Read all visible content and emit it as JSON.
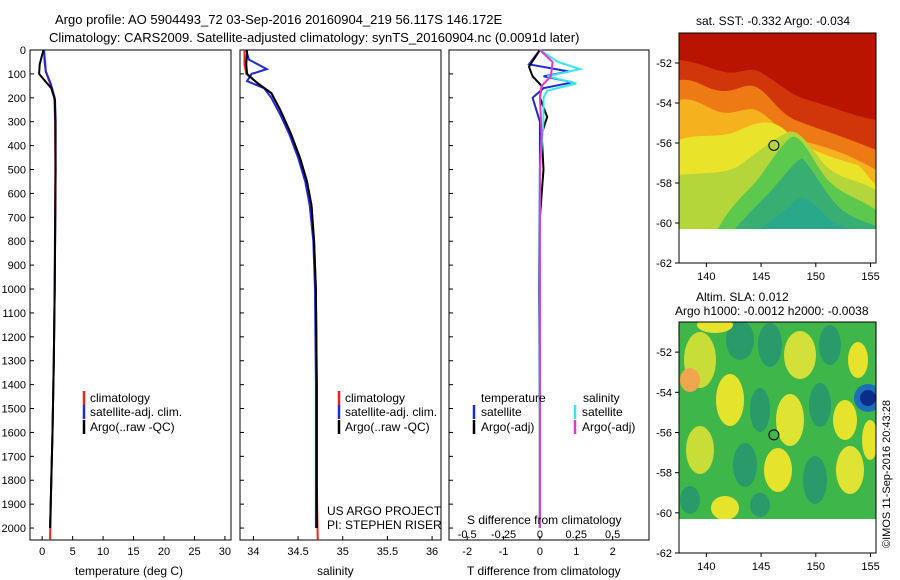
{
  "header": {
    "line1": "Argo profile: AO 5904493_72 03-Sep-2016 20160904_219 56.117S 146.172E",
    "line2": "Climatology: CARS2009. Satellite-adjusted climatology: synTS_20160904.nc (0.0091d later)"
  },
  "credits": {
    "project_line1": "US ARGO PROJECT",
    "project_line2": "PI: STEPHEN RISER",
    "stamp": "©IMOS 11-Sep-2016 20:43:28"
  },
  "colors": {
    "climatology": "#e8231e",
    "satellite": "#1f2ad4",
    "argo": "#000000",
    "salinity_satellite": "#35e6ee",
    "salinity_argo": "#e23ad0"
  },
  "chart_data": [
    {
      "type": "line",
      "id": "temperature",
      "xlabel": "temperature (deg C)",
      "ylabel": "",
      "xlim": [
        -2,
        31
      ],
      "ylim": [
        2050,
        0
      ],
      "xticks": [
        0,
        5,
        10,
        15,
        20,
        25,
        30
      ],
      "yticks": [
        0,
        100,
        200,
        300,
        400,
        500,
        600,
        700,
        800,
        900,
        1000,
        1100,
        1200,
        1300,
        1400,
        1500,
        1600,
        1700,
        1800,
        1900,
        2000
      ],
      "legend": [
        "climatology",
        "satellite-adj. clim.",
        "Argo(..raw -QC)"
      ],
      "series": [
        {
          "name": "climatology",
          "color": "#e8231e",
          "points": [
            [
              0.3,
              0
            ],
            [
              0.5,
              50
            ],
            [
              0.6,
              90
            ],
            [
              1.3,
              140
            ],
            [
              2.0,
              200
            ],
            [
              2.1,
              300
            ],
            [
              2.15,
              500
            ],
            [
              2.1,
              700
            ],
            [
              2.05,
              1000
            ],
            [
              1.9,
              1300
            ],
            [
              1.7,
              1600
            ],
            [
              1.5,
              1800
            ],
            [
              1.3,
              2050
            ]
          ]
        },
        {
          "name": "satellite-adj. clim.",
          "color": "#1f2ad4",
          "points": [
            [
              0.3,
              0
            ],
            [
              0.4,
              50
            ],
            [
              0.6,
              90
            ],
            [
              1.4,
              140
            ],
            [
              2.05,
              200
            ],
            [
              2.15,
              300
            ],
            [
              2.2,
              500
            ],
            [
              2.15,
              700
            ],
            [
              2.05,
              1000
            ],
            [
              1.9,
              1300
            ],
            [
              1.7,
              1600
            ],
            [
              1.5,
              1800
            ],
            [
              1.3,
              2000
            ]
          ]
        },
        {
          "name": "Argo(..raw -QC)",
          "color": "#000000",
          "points": [
            [
              0.2,
              0
            ],
            [
              -0.4,
              60
            ],
            [
              -0.5,
              100
            ],
            [
              0.5,
              130
            ],
            [
              1.5,
              160
            ],
            [
              2.1,
              210
            ],
            [
              2.2,
              300
            ],
            [
              2.2,
              500
            ],
            [
              2.15,
              700
            ],
            [
              2.05,
              1000
            ],
            [
              1.9,
              1300
            ],
            [
              1.7,
              1600
            ],
            [
              1.5,
              1800
            ],
            [
              1.3,
              2000
            ]
          ]
        }
      ]
    },
    {
      "type": "line",
      "id": "salinity",
      "xlabel": "salinity",
      "ylabel": "",
      "xlim": [
        33.85,
        36.1
      ],
      "ylim": [
        2050,
        0
      ],
      "xticks": [
        34,
        34.5,
        35,
        35.5,
        36
      ],
      "xticklabels": [
        "34",
        "34.5",
        "35",
        "35.5",
        "36"
      ],
      "legend": [
        "climatology",
        "satellite-adj. clim.",
        "Argo(..raw -QC)"
      ],
      "series": [
        {
          "name": "climatology",
          "color": "#e8231e",
          "points": [
            [
              33.9,
              0
            ],
            [
              33.9,
              60
            ],
            [
              33.92,
              100
            ],
            [
              34.05,
              140
            ],
            [
              34.2,
              180
            ],
            [
              34.3,
              250
            ],
            [
              34.42,
              350
            ],
            [
              34.52,
              450
            ],
            [
              34.6,
              550
            ],
            [
              34.65,
              650
            ],
            [
              34.68,
              800
            ],
            [
              34.7,
              1000
            ],
            [
              34.71,
              1400
            ],
            [
              34.71,
              1800
            ],
            [
              34.72,
              2050
            ]
          ]
        },
        {
          "name": "satellite-adj. clim.",
          "color": "#1f2ad4",
          "points": [
            [
              33.92,
              0
            ],
            [
              33.95,
              40
            ],
            [
              34.15,
              80
            ],
            [
              33.98,
              100
            ],
            [
              33.93,
              130
            ],
            [
              34.12,
              160
            ],
            [
              34.2,
              200
            ],
            [
              34.3,
              270
            ],
            [
              34.4,
              350
            ],
            [
              34.5,
              450
            ],
            [
              34.58,
              550
            ],
            [
              34.63,
              650
            ],
            [
              34.67,
              800
            ],
            [
              34.69,
              1000
            ],
            [
              34.7,
              1400
            ],
            [
              34.7,
              1800
            ],
            [
              34.7,
              2000
            ]
          ]
        },
        {
          "name": "Argo(..raw -QC)",
          "color": "#000000",
          "points": [
            [
              33.93,
              0
            ],
            [
              33.92,
              60
            ],
            [
              33.93,
              100
            ],
            [
              34.05,
              140
            ],
            [
              34.2,
              180
            ],
            [
              34.3,
              250
            ],
            [
              34.42,
              350
            ],
            [
              34.52,
              450
            ],
            [
              34.6,
              550
            ],
            [
              34.65,
              650
            ],
            [
              34.68,
              800
            ],
            [
              34.7,
              1000
            ],
            [
              34.71,
              1400
            ],
            [
              34.71,
              1800
            ],
            [
              34.71,
              2000
            ]
          ]
        }
      ]
    },
    {
      "type": "line",
      "id": "difference",
      "xlabel": "T difference from climatology",
      "xlabel2": "S difference from climatology",
      "xlim": [
        -2.5,
        3
      ],
      "ylim": [
        2050,
        0
      ],
      "xticks": [
        -2,
        -1,
        0,
        1,
        2
      ],
      "xticks_top": [
        -0.5,
        -0.25,
        0,
        0.25,
        0.5
      ],
      "xticklabels_top": [
        "-0.5",
        "-0.25",
        "0",
        "0.25",
        "0.5"
      ],
      "legend_title_t": "temperature",
      "legend_title_s": "salinity",
      "legend_t": [
        "satellite",
        "Argo(-adj)"
      ],
      "legend_s": [
        "satellite",
        "Argo(-adj)"
      ],
      "series": [
        {
          "name": "satellite",
          "group": "temperature",
          "color": "#1f2ad4",
          "points": [
            [
              0,
              0
            ],
            [
              -0.3,
              60
            ],
            [
              0.8,
              90
            ],
            [
              0.1,
              110
            ],
            [
              0.9,
              135
            ],
            [
              0.1,
              160
            ],
            [
              -0.2,
              200
            ],
            [
              0,
              300
            ],
            [
              0,
              500
            ],
            [
              -0.02,
              1000
            ],
            [
              0,
              1500
            ],
            [
              0,
              2000
            ]
          ]
        },
        {
          "name": "Argo(-adj)",
          "group": "temperature",
          "color": "#000000",
          "points": [
            [
              0,
              0
            ],
            [
              -0.3,
              70
            ],
            [
              -0.2,
              110
            ],
            [
              0.05,
              150
            ],
            [
              0,
              200
            ],
            [
              0.2,
              280
            ],
            [
              0.05,
              350
            ],
            [
              0.1,
              500
            ],
            [
              0,
              700
            ],
            [
              0,
              1000
            ],
            [
              0,
              1500
            ],
            [
              0,
              2000
            ]
          ]
        },
        {
          "name": "satellite",
          "group": "salinity",
          "color": "#35e6ee",
          "points": [
            [
              0,
              0
            ],
            [
              0.5,
              50
            ],
            [
              1.1,
              80
            ],
            [
              0.2,
              110
            ],
            [
              1.0,
              140
            ],
            [
              0.2,
              170
            ],
            [
              0.1,
              200
            ],
            [
              0.1,
              300
            ],
            [
              0,
              500
            ],
            [
              0,
              1000
            ],
            [
              0,
              1500
            ],
            [
              0,
              2000
            ]
          ]
        },
        {
          "name": "Argo(-adj)",
          "group": "salinity",
          "color": "#e23ad0",
          "points": [
            [
              0,
              0
            ],
            [
              0.35,
              50
            ],
            [
              0.3,
              110
            ],
            [
              0.05,
              150
            ],
            [
              0,
              200
            ],
            [
              0.05,
              350
            ],
            [
              0,
              500
            ],
            [
              0,
              1000
            ],
            [
              0,
              1500
            ],
            [
              0,
              2000
            ]
          ]
        }
      ]
    },
    {
      "type": "heatmap",
      "id": "sst-map",
      "title": "sat. SST: -0.332 Argo: -0.034",
      "xlim": [
        137.5,
        155.5
      ],
      "ylim": [
        -62,
        -50.5
      ],
      "xticks": [
        140,
        145,
        150,
        155
      ],
      "yticks": [
        -52,
        -54,
        -56,
        -58,
        -60,
        -62
      ],
      "marker": {
        "lon": 146.172,
        "lat": -56.117
      }
    },
    {
      "type": "heatmap",
      "id": "sla-map",
      "title_line1": "Altim. SLA: 0.012",
      "title_line2": "Argo h1000: -0.0012 h2000: -0.0038",
      "xlim": [
        137.5,
        155.5
      ],
      "ylim": [
        -62,
        -50.5
      ],
      "xticks": [
        140,
        145,
        150,
        155
      ],
      "yticks": [
        -52,
        -54,
        -56,
        -58,
        -60,
        -62
      ],
      "marker": {
        "lon": 146.172,
        "lat": -56.117
      }
    }
  ]
}
